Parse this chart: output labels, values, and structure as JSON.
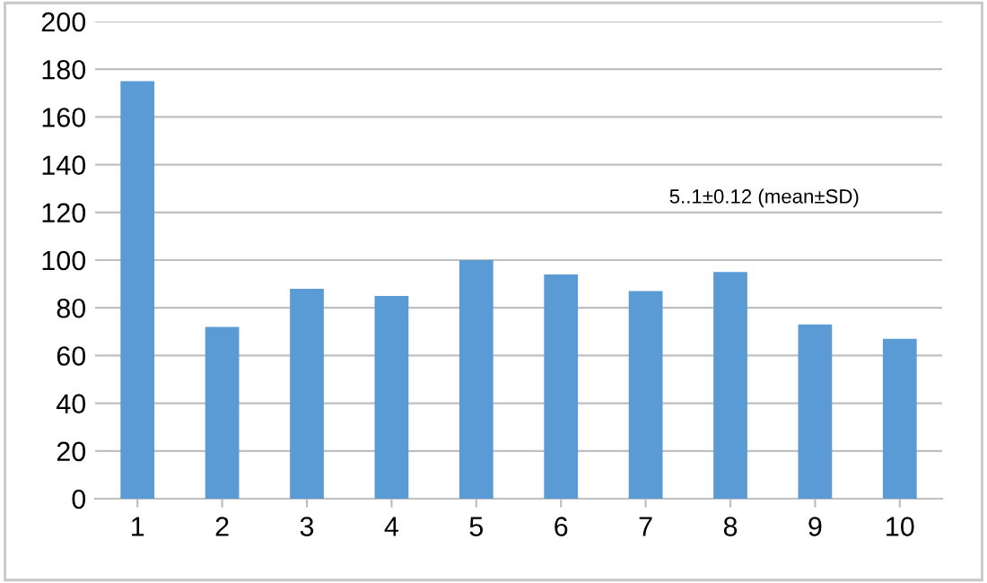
{
  "chart_data": {
    "type": "bar",
    "categories": [
      "1",
      "2",
      "3",
      "4",
      "5",
      "6",
      "7",
      "8",
      "9",
      "10"
    ],
    "values": [
      175,
      72,
      88,
      85,
      100,
      94,
      87,
      95,
      73,
      67
    ],
    "color": "#5b9bd5",
    "ylim": [
      0,
      200
    ],
    "yticks": [
      0,
      20,
      40,
      60,
      80,
      100,
      120,
      140,
      160,
      180,
      200
    ],
    "grid": "y",
    "annotations": [
      "5..1±0.12 (mean±SD)"
    ]
  }
}
